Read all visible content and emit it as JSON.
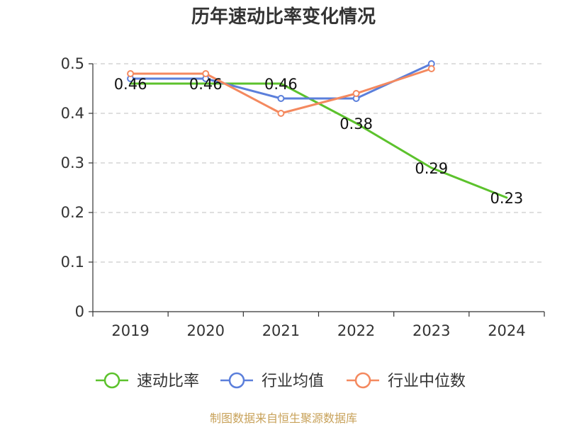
{
  "chart_data": {
    "type": "line",
    "title": "历年速动比率变化情况",
    "categories": [
      "2019",
      "2020",
      "2021",
      "2022",
      "2023",
      "2024"
    ],
    "y_ticks": [
      "0",
      "0.1",
      "0.2",
      "0.3",
      "0.4",
      "0.5"
    ],
    "ylim": [
      0,
      0.5
    ],
    "grid": true,
    "legend_position": "bottom",
    "series": [
      {
        "name": "速动比率",
        "color": "#5cc22c",
        "values": [
          0.46,
          0.46,
          0.46,
          0.38,
          0.29,
          0.23
        ],
        "labels": [
          "0.46",
          "0.46",
          "0.46",
          "0.38",
          "0.29",
          "0.23"
        ],
        "show_markers": false
      },
      {
        "name": "行业均值",
        "color": "#5b7fdb",
        "values": [
          0.47,
          0.47,
          0.43,
          0.43,
          0.5,
          null
        ],
        "show_markers": true
      },
      {
        "name": "行业中位数",
        "color": "#f4895f",
        "values": [
          0.48,
          0.48,
          0.4,
          0.44,
          0.49,
          null
        ],
        "show_markers": true
      }
    ]
  },
  "footer": {
    "source": "制图数据来自恒生聚源数据库"
  }
}
